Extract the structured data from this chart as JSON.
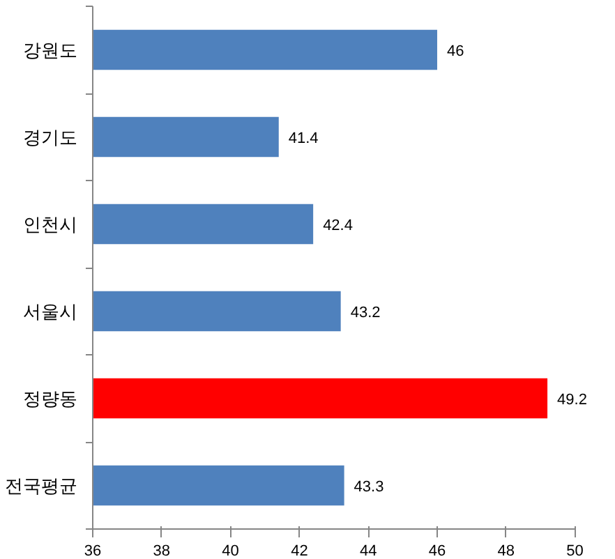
{
  "chart_data": {
    "type": "bar",
    "orientation": "horizontal",
    "categories": [
      "강원도",
      "경기도",
      "인천시",
      "서울시",
      "정량동",
      "전국평균"
    ],
    "values": [
      46,
      41.4,
      42.4,
      43.2,
      49.2,
      43.3
    ],
    "colors": [
      "#4f81bd",
      "#4f81bd",
      "#4f81bd",
      "#4f81bd",
      "#ff0000",
      "#4f81bd"
    ],
    "xlim": [
      36,
      50
    ],
    "xticks": [
      36,
      38,
      40,
      42,
      44,
      46,
      48,
      50
    ],
    "data_labels": true,
    "grid": false
  }
}
